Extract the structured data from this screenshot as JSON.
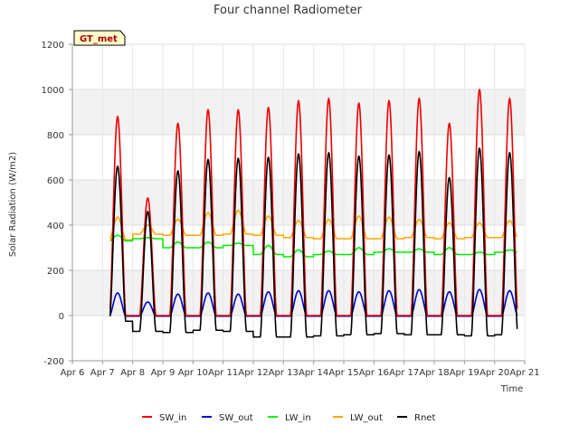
{
  "chart_data": {
    "type": "line",
    "title": "Four channel Radiometer",
    "xlabel": "Time",
    "ylabel": "Solar Radiation (W/m2)",
    "badge": "GT_met",
    "xlim": [
      6,
      21
    ],
    "ylim": [
      -200,
      1200
    ],
    "x_ticks": [
      6,
      7,
      8,
      9,
      10,
      11,
      12,
      13,
      14,
      15,
      16,
      17,
      18,
      19,
      20,
      21
    ],
    "x_tick_labels": [
      "Apr 6",
      "Apr 7",
      "Apr 8",
      "Apr 9",
      "Apr 10",
      "Apr 11",
      "Apr 12",
      "Apr 13",
      "Apr 14",
      "Apr 15",
      "Apr 16",
      "Apr 17",
      "Apr 18",
      "Apr 19",
      "Apr 20",
      "Apr 21"
    ],
    "y_ticks": [
      -200,
      0,
      200,
      400,
      600,
      800,
      1000,
      1200
    ],
    "y_tick_labels": [
      "-200",
      "0",
      "200",
      "400",
      "600",
      "800",
      "1000",
      "1200"
    ],
    "grid": true,
    "legend_position": "bottom",
    "days": [
      7,
      8,
      9,
      10,
      11,
      12,
      13,
      14,
      15,
      16,
      17,
      18,
      19,
      20
    ],
    "noon_offset": 0.5,
    "day_half_width": 0.27,
    "series": [
      {
        "name": "SW_in",
        "color": "#ee0000",
        "daily_peaks": [
          880,
          520,
          850,
          910,
          910,
          920,
          950,
          960,
          940,
          950,
          960,
          850,
          1000,
          960
        ],
        "night_values": [
          0,
          0,
          0,
          0,
          0,
          0,
          0,
          0,
          0,
          0,
          0,
          0,
          0,
          0
        ]
      },
      {
        "name": "SW_out",
        "color": "#0000cc",
        "daily_peaks": [
          100,
          60,
          95,
          100,
          95,
          105,
          110,
          110,
          105,
          110,
          115,
          105,
          115,
          110
        ],
        "night_values": [
          -3,
          -3,
          -3,
          -3,
          -3,
          -3,
          -3,
          -3,
          -3,
          -3,
          -3,
          -3,
          -3,
          -3
        ]
      },
      {
        "name": "LW_in",
        "color": "#00ee00",
        "daily_peaks": [
          355,
          345,
          325,
          325,
          320,
          310,
          290,
          285,
          300,
          295,
          295,
          300,
          280,
          290
        ],
        "night_values": [
          330,
          340,
          300,
          300,
          310,
          270,
          260,
          270,
          270,
          280,
          280,
          270,
          270,
          280
        ]
      },
      {
        "name": "LW_out",
        "color": "#ffa500",
        "daily_peaks": [
          435,
          400,
          425,
          455,
          465,
          440,
          420,
          425,
          440,
          435,
          425,
          410,
          410,
          420
        ],
        "night_values": [
          335,
          360,
          355,
          355,
          360,
          355,
          345,
          340,
          340,
          340,
          345,
          340,
          345,
          345
        ]
      },
      {
        "name": "Rnet",
        "color": "#000000",
        "daily_peaks": [
          660,
          460,
          640,
          690,
          695,
          700,
          715,
          720,
          705,
          710,
          725,
          610,
          740,
          720
        ],
        "night_values": [
          -25,
          -70,
          -75,
          -65,
          -70,
          -95,
          -95,
          -90,
          -85,
          -80,
          -85,
          -85,
          -90,
          -85
        ]
      }
    ]
  }
}
